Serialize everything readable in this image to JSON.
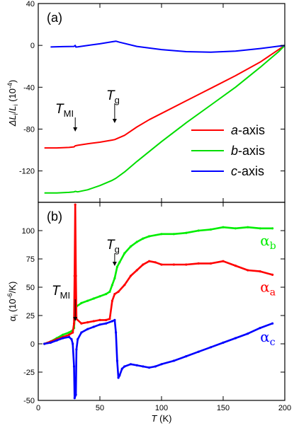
{
  "chart_data": [
    {
      "panel": "(a)",
      "type": "line",
      "xlabel": "",
      "ylabel": {
        "main": "ΔL",
        "sub": "i",
        "slash": "/",
        "main2": "L",
        "sub2": "i",
        "unit": " (10",
        "exp": "-4",
        "close": ")"
      },
      "xlim": [
        0,
        200
      ],
      "ylim": [
        -150,
        40
      ],
      "yticks": [
        40,
        0,
        -40,
        -80,
        -120
      ],
      "xticks": [
        0,
        50,
        100,
        150,
        200
      ],
      "annotations": [
        {
          "label": "T",
          "sub": "MI",
          "x": 30
        },
        {
          "label": "T",
          "sub": "g",
          "x": 62
        }
      ],
      "legend": {
        "placement": "lower-right",
        "entries": [
          {
            "italic": "a",
            "rest": "-axis",
            "color": "#ff0000"
          },
          {
            "italic": "b",
            "rest": "-axis",
            "color": "#00dd00"
          },
          {
            "italic": "c",
            "rest": "-axis",
            "color": "#0000ff"
          }
        ]
      },
      "series": [
        {
          "name": "a-axis",
          "color": "#ff0000",
          "points": [
            [
              5,
              -98
            ],
            [
              15,
              -98
            ],
            [
              25,
              -97.5
            ],
            [
              29,
              -97
            ],
            [
              30,
              -96
            ],
            [
              32,
              -95.5
            ],
            [
              40,
              -94
            ],
            [
              50,
              -92.5
            ],
            [
              60,
              -90.5
            ],
            [
              62,
              -90
            ],
            [
              70,
              -86
            ],
            [
              80,
              -78
            ],
            [
              90,
              -71
            ],
            [
              100,
              -65
            ],
            [
              120,
              -53
            ],
            [
              140,
              -41
            ],
            [
              160,
              -29
            ],
            [
              180,
              -16
            ],
            [
              195,
              -4
            ],
            [
              200,
              0
            ]
          ]
        },
        {
          "name": "b-axis",
          "color": "#00dd00",
          "points": [
            [
              5,
              -141
            ],
            [
              15,
              -141
            ],
            [
              25,
              -140.5
            ],
            [
              29,
              -140
            ],
            [
              30,
              -139.5
            ],
            [
              32,
              -140
            ],
            [
              40,
              -138
            ],
            [
              50,
              -134
            ],
            [
              60,
              -129
            ],
            [
              63,
              -127
            ],
            [
              70,
              -121
            ],
            [
              80,
              -111
            ],
            [
              100,
              -92
            ],
            [
              120,
              -74
            ],
            [
              140,
              -57
            ],
            [
              160,
              -40
            ],
            [
              180,
              -21
            ],
            [
              195,
              -6
            ],
            [
              200,
              0
            ]
          ]
        },
        {
          "name": "c-axis",
          "color": "#0000ff",
          "points": [
            [
              10,
              -1.5
            ],
            [
              20,
              -1.2
            ],
            [
              29,
              -1
            ],
            [
              30,
              0
            ],
            [
              30.5,
              -1.6
            ],
            [
              32,
              -1.4
            ],
            [
              40,
              0
            ],
            [
              50,
              1.5
            ],
            [
              60,
              3.5
            ],
            [
              63,
              4
            ],
            [
              66,
              3
            ],
            [
              80,
              -1
            ],
            [
              100,
              -4
            ],
            [
              120,
              -6
            ],
            [
              140,
              -6.5
            ],
            [
              160,
              -5.5
            ],
            [
              180,
              -3
            ],
            [
              195,
              -0.8
            ],
            [
              200,
              0
            ]
          ]
        }
      ]
    },
    {
      "panel": "(b)",
      "type": "scatter",
      "xlabel": {
        "italic": "T",
        "rest": " (K)"
      },
      "ylabel": {
        "main": "α",
        "sub": "i",
        "unit": " (10",
        "exp": "-6",
        "close": "/K)"
      },
      "xlim": [
        0,
        200
      ],
      "ylim": [
        -50,
        125
      ],
      "yticks": [
        100,
        75,
        50,
        25,
        0,
        -25,
        -50
      ],
      "xticks": [
        0,
        50,
        100,
        150,
        200
      ],
      "annotations": [
        {
          "label": "T",
          "sub": "MI",
          "x": 30
        },
        {
          "label": "T",
          "sub": "g",
          "x": 62
        }
      ],
      "series": [
        {
          "name_main": "α",
          "name_sub": "b",
          "color": "#00ee00",
          "label_at": [
            180,
            87
          ],
          "points": [
            [
              5,
              0
            ],
            [
              10,
              2
            ],
            [
              15,
              5
            ],
            [
              20,
              8
            ],
            [
              25,
              10
            ],
            [
              28,
              12
            ],
            [
              29,
              14
            ],
            [
              30,
              30
            ],
            [
              31,
              33
            ],
            [
              35,
              36
            ],
            [
              40,
              38
            ],
            [
              45,
              40
            ],
            [
              50,
              42
            ],
            [
              55,
              44
            ],
            [
              58,
              46
            ],
            [
              60,
              52
            ],
            [
              62,
              58
            ],
            [
              64,
              68
            ],
            [
              66,
              72
            ],
            [
              70,
              80
            ],
            [
              75,
              86
            ],
            [
              80,
              90
            ],
            [
              85,
              93
            ],
            [
              90,
              95
            ],
            [
              100,
              97
            ],
            [
              110,
              97
            ],
            [
              120,
              98
            ],
            [
              130,
              100
            ],
            [
              140,
              101
            ],
            [
              150,
              103
            ],
            [
              160,
              102
            ],
            [
              170,
              103
            ],
            [
              180,
              102
            ],
            [
              190,
              102
            ]
          ]
        },
        {
          "name_main": "α",
          "name_sub": "a",
          "color": "#ff0000",
          "label_at": [
            180,
            46
          ],
          "points": [
            [
              5,
              0
            ],
            [
              10,
              2
            ],
            [
              15,
              4
            ],
            [
              20,
              6
            ],
            [
              25,
              8
            ],
            [
              28,
              10
            ],
            [
              29,
              18
            ],
            [
              29.5,
              60
            ],
            [
              30,
              123
            ],
            [
              30.5,
              60
            ],
            [
              31,
              22
            ],
            [
              35,
              18
            ],
            [
              40,
              19
            ],
            [
              45,
              20
            ],
            [
              50,
              21
            ],
            [
              55,
              21
            ],
            [
              58,
              22
            ],
            [
              60,
              38
            ],
            [
              62,
              44
            ],
            [
              65,
              46
            ],
            [
              70,
              52
            ],
            [
              75,
              60
            ],
            [
              80,
              65
            ],
            [
              85,
              70
            ],
            [
              90,
              73
            ],
            [
              95,
              72
            ],
            [
              100,
              70
            ],
            [
              110,
              70
            ],
            [
              120,
              70
            ],
            [
              130,
              71
            ],
            [
              140,
              71
            ],
            [
              150,
              73
            ],
            [
              160,
              69
            ],
            [
              170,
              65
            ],
            [
              180,
              64
            ],
            [
              190,
              61
            ]
          ]
        },
        {
          "name_main": "α",
          "name_sub": "c",
          "color": "#0000ff",
          "label_at": [
            180,
            2
          ],
          "points": [
            [
              5,
              0
            ],
            [
              10,
              1
            ],
            [
              15,
              3
            ],
            [
              20,
              5
            ],
            [
              25,
              6
            ],
            [
              27,
              4
            ],
            [
              28,
              0
            ],
            [
              29,
              -20
            ],
            [
              29.5,
              -48
            ],
            [
              30.5,
              -45
            ],
            [
              31,
              -5
            ],
            [
              32,
              4
            ],
            [
              35,
              10
            ],
            [
              40,
              13
            ],
            [
              45,
              15
            ],
            [
              50,
              17
            ],
            [
              55,
              18
            ],
            [
              60,
              20
            ],
            [
              62,
              21
            ],
            [
              63,
              10
            ],
            [
              64,
              -15
            ],
            [
              65,
              -30
            ],
            [
              66,
              -28
            ],
            [
              68,
              -22
            ],
            [
              70,
              -20
            ],
            [
              75,
              -18
            ],
            [
              80,
              -19
            ],
            [
              85,
              -20
            ],
            [
              90,
              -21
            ],
            [
              95,
              -20
            ],
            [
              100,
              -18
            ],
            [
              110,
              -15
            ],
            [
              120,
              -11
            ],
            [
              130,
              -7
            ],
            [
              140,
              -3
            ],
            [
              150,
              1
            ],
            [
              160,
              5
            ],
            [
              170,
              9
            ],
            [
              180,
              14
            ],
            [
              190,
              18
            ]
          ]
        }
      ]
    }
  ]
}
